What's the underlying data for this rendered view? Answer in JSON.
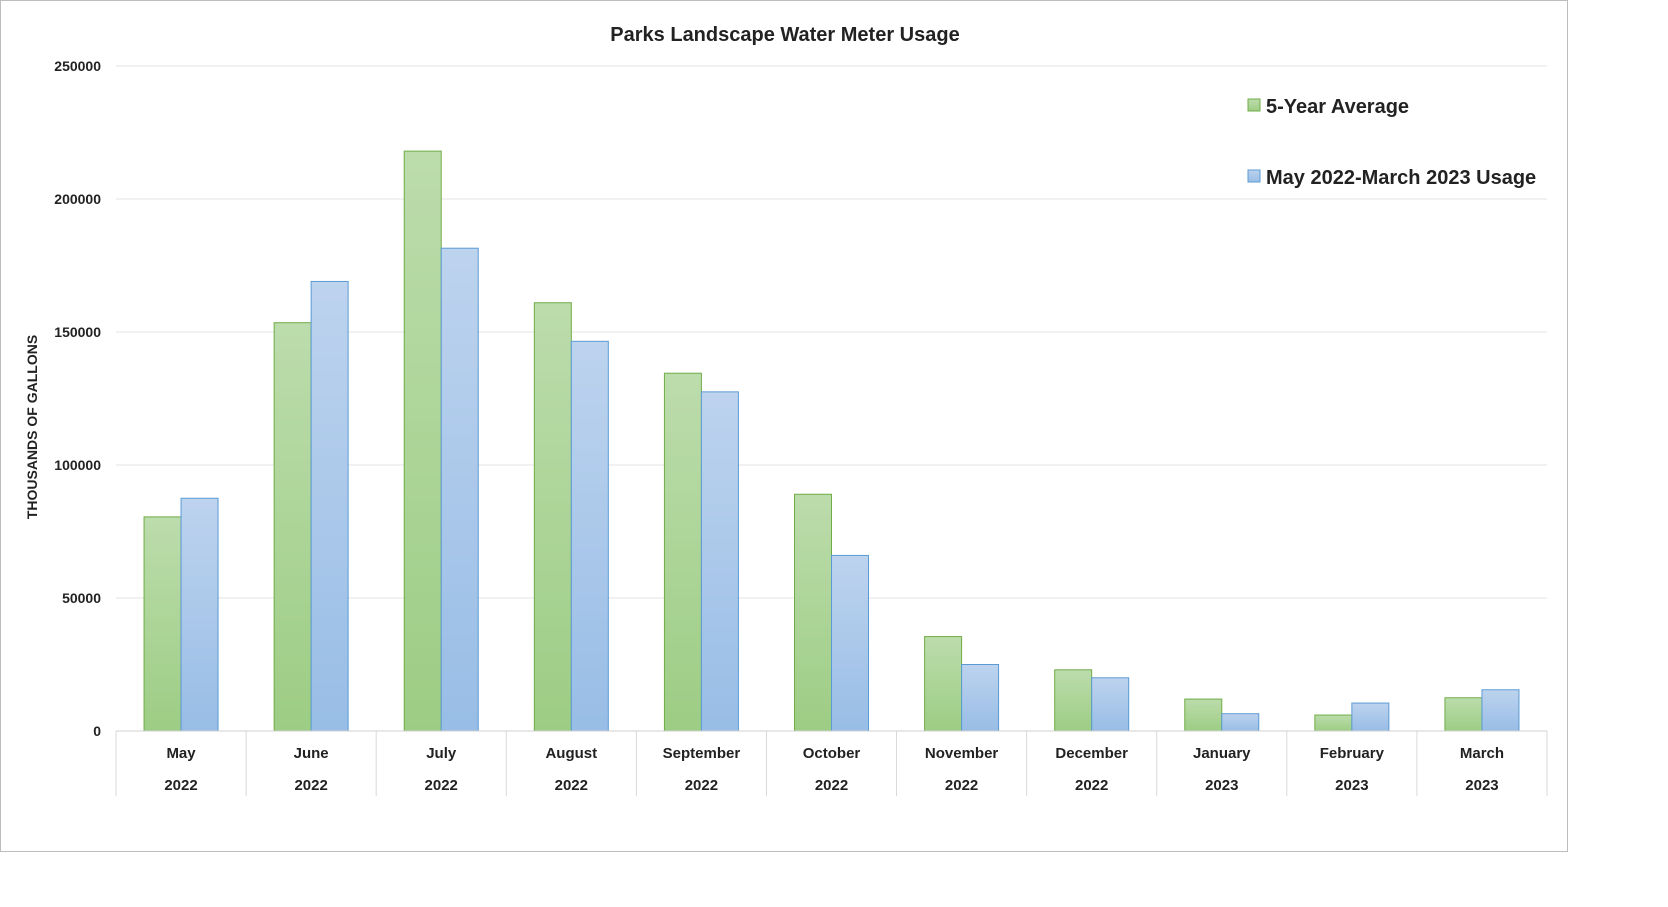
{
  "chart_data": {
    "type": "bar",
    "title": "Parks Landscape Water Meter Usage",
    "xlabel": "",
    "ylabel": "THOUSANDS OF GALLONS",
    "ylim": [
      0,
      250000
    ],
    "yticks": [
      "0",
      "50000",
      "100000",
      "150000",
      "200000",
      "250000"
    ],
    "categories": [
      {
        "month": "May",
        "year": "2022"
      },
      {
        "month": "June",
        "year": "2022"
      },
      {
        "month": "July",
        "year": "2022"
      },
      {
        "month": "August",
        "year": "2022"
      },
      {
        "month": "September",
        "year": "2022"
      },
      {
        "month": "October",
        "year": "2022"
      },
      {
        "month": "November",
        "year": "2022"
      },
      {
        "month": "December",
        "year": "2022"
      },
      {
        "month": "January",
        "year": "2023"
      },
      {
        "month": "February",
        "year": "2023"
      },
      {
        "month": "March",
        "year": "2023"
      }
    ],
    "series": [
      {
        "name": "5-Year Average",
        "color_top": "#bcdcac",
        "color_bottom": "#9dcd84",
        "stroke": "#70ad47",
        "values": [
          80500,
          153500,
          218000,
          161000,
          134500,
          89000,
          35500,
          23000,
          12000,
          6000,
          12500
        ]
      },
      {
        "name": "May 2022-March 2023 Usage",
        "color_top": "#bdd3ee",
        "color_bottom": "#98bde6",
        "stroke": "#5b9bd5",
        "values": [
          87500,
          169000,
          181500,
          146500,
          127500,
          66000,
          25000,
          20000,
          6500,
          10500,
          15500
        ]
      }
    ],
    "grid": true,
    "legend_position": "top-right"
  }
}
